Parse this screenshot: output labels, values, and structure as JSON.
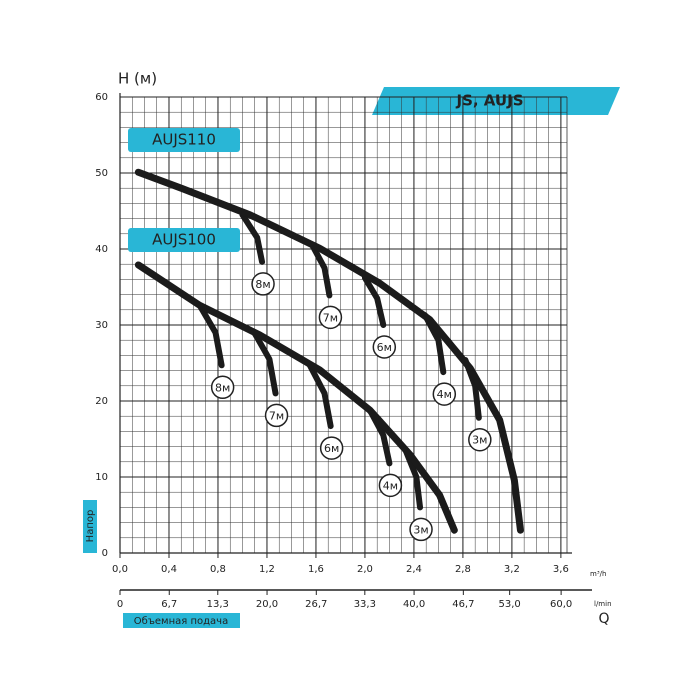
{
  "chart_data": {
    "type": "line",
    "title": "JS, AUJS",
    "y_label": "H (м)",
    "y_side_label": "Напор",
    "x_label": "Объемная подача",
    "x_symbol": "Q",
    "x_unit": "m³/h",
    "x2_unit": "l/min",
    "grid": true,
    "xlim": [
      0,
      3.65
    ],
    "xticks": [
      {
        "value": 0,
        "label": "0,0"
      },
      {
        "value": 0.4,
        "label": "0,4"
      },
      {
        "value": 0.8,
        "label": "0,8"
      },
      {
        "value": 1.2,
        "label": "1,2"
      },
      {
        "value": 1.6,
        "label": "1,6"
      },
      {
        "value": 2.0,
        "label": "2,0"
      },
      {
        "value": 2.4,
        "label": "2,4"
      },
      {
        "value": 2.8,
        "label": "2,8"
      },
      {
        "value": 3.2,
        "label": "3,2"
      },
      {
        "value": 3.6,
        "label": "3,6"
      }
    ],
    "x2lim": [
      0,
      60.8
    ],
    "x2ticks": [
      0,
      {
        "value": 6.7,
        "label": "6,7"
      },
      {
        "value": 13.3,
        "label": "13,3"
      },
      {
        "value": 20.0,
        "label": "20,0"
      },
      {
        "value": 26.7,
        "label": "26,7"
      },
      {
        "value": 33.3,
        "label": "33,3"
      },
      {
        "value": 40.0,
        "label": "40,0"
      },
      {
        "value": 46.7,
        "label": "46,7"
      },
      {
        "value": 53.0,
        "label": "53,0"
      },
      {
        "value": 60.0,
        "label": "60,0"
      }
    ],
    "ylim": [
      0,
      60
    ],
    "yticks": [
      0,
      10,
      20,
      30,
      40,
      50,
      60
    ],
    "series": [
      {
        "name": "AUJS110",
        "color": "#1b1b1b",
        "x": [
          0.15,
          0.5,
          1.06,
          1.63,
          2.12,
          2.53,
          2.86,
          3.1,
          3.22,
          3.27
        ],
        "values": [
          50.1,
          48.0,
          44.5,
          40.1,
          35.5,
          30.7,
          24.3,
          17.5,
          9.6,
          3
        ],
        "branches": [
          {
            "name": "8м",
            "x": [
              1.0,
              1.12,
              1.16
            ],
            "values": [
              44.5,
              41.5,
              38.3
            ]
          },
          {
            "name": "7м",
            "x": [
              1.57,
              1.67,
              1.71
            ],
            "values": [
              40.5,
              37.5,
              33.9
            ]
          },
          {
            "name": "6м",
            "x": [
              2.0,
              2.1,
              2.15
            ],
            "values": [
              36.2,
              33.5,
              30
            ]
          },
          {
            "name": "4м",
            "x": [
              2.49,
              2.6,
              2.64
            ],
            "values": [
              31.3,
              28,
              23.8
            ]
          },
          {
            "name": "3м",
            "x": [
              2.82,
              2.9,
              2.93
            ],
            "values": [
              25.4,
              22,
              17.8
            ]
          }
        ]
      },
      {
        "name": "AUJS100",
        "color": "#1b1b1b",
        "x": [
          0.15,
          0.65,
          1.14,
          1.63,
          2.04,
          2.37,
          2.61,
          2.73
        ],
        "values": [
          37.9,
          32.6,
          28.7,
          24.1,
          18.8,
          12.9,
          7.6,
          3
        ],
        "branches": [
          {
            "name": "8м",
            "x": [
              0.65,
              0.78,
              0.83
            ],
            "values": [
              32.6,
              29,
              24.7
            ]
          },
          {
            "name": "7м",
            "x": [
              1.1,
              1.22,
              1.27
            ],
            "values": [
              28.9,
              25.5,
              21
            ]
          },
          {
            "name": "6м",
            "x": [
              1.55,
              1.67,
              1.72
            ],
            "values": [
              24.7,
              21,
              16.7
            ]
          },
          {
            "name": "4м",
            "x": [
              2.04,
              2.15,
              2.2
            ],
            "values": [
              18.8,
              15.5,
              11.8
            ]
          },
          {
            "name": "3м",
            "x": [
              2.33,
              2.42,
              2.45
            ],
            "values": [
              13.6,
              10,
              6
            ]
          }
        ]
      }
    ]
  }
}
